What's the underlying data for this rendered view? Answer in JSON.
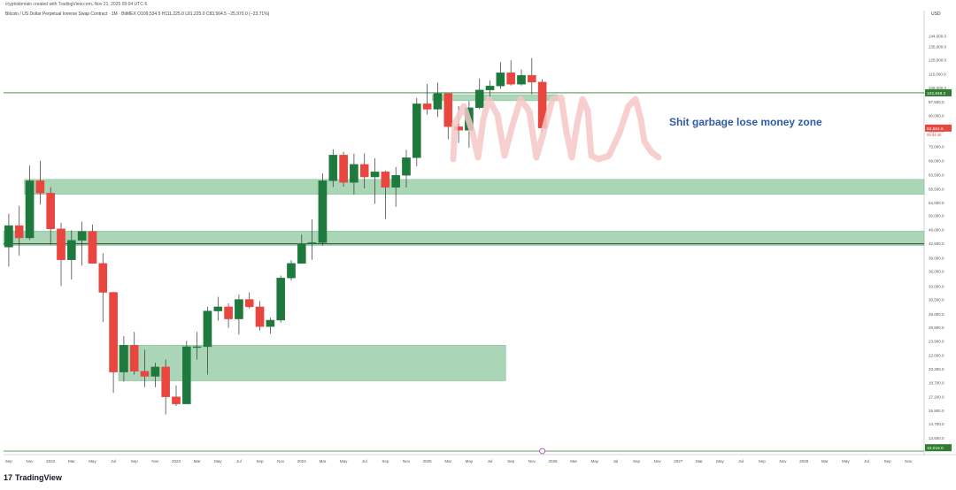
{
  "header": {
    "author_line": "cryptodomain created with TradingView.com, Nov 21, 2025 09:04 UTC-5",
    "symbol_line": "Bitcoin / US Dollar Perpetual Inverse Swap Contract · 1M · BitMEX  O109,534.5  H111,225.0  L81,225.0  C83,564.5  −25,970.0 (−23.71%)",
    "currency": "USD"
  },
  "branding": {
    "logo_text": "TradingView",
    "logo_mark": "17"
  },
  "annotation": {
    "text": "Shit garbage lose money zone"
  },
  "price_labels": {
    "level_label": "102,848.2",
    "current_label": "83,564.5",
    "current_time": "09:04:40",
    "bottom_label": "10,015.0"
  },
  "colors": {
    "bull": "#1e7a3c",
    "bear": "#e8463e",
    "zone": "#9ccfab",
    "zone_border": "#7ab98e",
    "scribble": "#f6c7c7",
    "annotation": "#2f5aa6",
    "level_line": "#2e7d32"
  },
  "chart_data": {
    "type": "candlestick",
    "interval": "1M",
    "scale": "log",
    "ylim": [
      12500,
      160000
    ],
    "y_ticks": [
      "144,000.0",
      "135,000.0",
      "125,000.0",
      "115,000.0",
      "106,000.0",
      "97,500.0",
      "90,000.0",
      "82,500.0",
      "75,000.0",
      "69,000.0",
      "63,500.0",
      "58,500.0",
      "54,000.0",
      "50,000.0",
      "46,000.0",
      "42,500.0",
      "39,000.0",
      "36,000.0",
      "33,000.0",
      "30,500.0",
      "28,000.0",
      "25,900.0",
      "23,900.0",
      "22,000.0",
      "20,300.0",
      "18,700.0",
      "17,200.0",
      "15,900.0",
      "14,700.0",
      "13,500.0"
    ],
    "x_ticks": [
      "Sep",
      "Nov",
      "2022",
      "Mar",
      "May",
      "Jul",
      "Sep",
      "Nov",
      "2023",
      "Mar",
      "May",
      "Jul",
      "Sep",
      "Nov",
      "2024",
      "Mar",
      "May",
      "Jul",
      "Sep",
      "Nov",
      "2025",
      "Mar",
      "May",
      "Jul",
      "Sep",
      "Nov",
      "2026",
      "Mar",
      "May",
      "Jul",
      "Sep",
      "Nov",
      "2027",
      "Mar",
      "May",
      "Jul",
      "Sep",
      "Nov",
      "2028",
      "Mar",
      "May",
      "Jul",
      "Sep",
      "Nov"
    ],
    "candles": [
      {
        "t": "2021-08",
        "o": 41500,
        "h": 50500,
        "l": 37000,
        "c": 47100
      },
      {
        "t": "2021-09",
        "o": 47100,
        "h": 52900,
        "l": 39500,
        "c": 43800
      },
      {
        "t": "2021-10",
        "o": 43800,
        "h": 67000,
        "l": 43300,
        "c": 61300
      },
      {
        "t": "2021-11",
        "o": 61300,
        "h": 69000,
        "l": 53300,
        "c": 57000
      },
      {
        "t": "2021-12",
        "o": 57000,
        "h": 59000,
        "l": 42100,
        "c": 46200
      },
      {
        "t": "2022-01",
        "o": 46200,
        "h": 47900,
        "l": 33000,
        "c": 38500
      },
      {
        "t": "2022-02",
        "o": 38500,
        "h": 45800,
        "l": 34300,
        "c": 43200
      },
      {
        "t": "2022-03",
        "o": 43200,
        "h": 48200,
        "l": 37200,
        "c": 45500
      },
      {
        "t": "2022-04",
        "o": 45500,
        "h": 47400,
        "l": 37700,
        "c": 37700
      },
      {
        "t": "2022-05",
        "o": 37700,
        "h": 40000,
        "l": 26700,
        "c": 31800
      },
      {
        "t": "2022-06",
        "o": 31800,
        "h": 31900,
        "l": 17600,
        "c": 19900
      },
      {
        "t": "2022-07",
        "o": 19900,
        "h": 24600,
        "l": 18800,
        "c": 23300
      },
      {
        "t": "2022-08",
        "o": 23300,
        "h": 25200,
        "l": 19600,
        "c": 20000
      },
      {
        "t": "2022-09",
        "o": 20000,
        "h": 22700,
        "l": 18200,
        "c": 19400
      },
      {
        "t": "2022-10",
        "o": 19400,
        "h": 21000,
        "l": 18200,
        "c": 20500
      },
      {
        "t": "2022-11",
        "o": 20500,
        "h": 21400,
        "l": 15500,
        "c": 17200
      },
      {
        "t": "2022-12",
        "o": 17200,
        "h": 18400,
        "l": 16300,
        "c": 16500
      },
      {
        "t": "2023-01",
        "o": 16500,
        "h": 23900,
        "l": 16500,
        "c": 23100
      },
      {
        "t": "2023-02",
        "o": 23100,
        "h": 25200,
        "l": 21400,
        "c": 23100
      },
      {
        "t": "2023-03",
        "o": 23100,
        "h": 29200,
        "l": 19600,
        "c": 28500
      },
      {
        "t": "2023-04",
        "o": 28500,
        "h": 31000,
        "l": 26900,
        "c": 29200
      },
      {
        "t": "2023-05",
        "o": 29200,
        "h": 29800,
        "l": 25800,
        "c": 27200
      },
      {
        "t": "2023-06",
        "o": 27200,
        "h": 31400,
        "l": 24800,
        "c": 30500
      },
      {
        "t": "2023-07",
        "o": 30500,
        "h": 31800,
        "l": 28900,
        "c": 29200
      },
      {
        "t": "2023-08",
        "o": 29200,
        "h": 30200,
        "l": 25400,
        "c": 26000
      },
      {
        "t": "2023-09",
        "o": 26000,
        "h": 27400,
        "l": 24900,
        "c": 27000
      },
      {
        "t": "2023-10",
        "o": 27000,
        "h": 35100,
        "l": 26600,
        "c": 34600
      },
      {
        "t": "2023-11",
        "o": 34600,
        "h": 38400,
        "l": 34100,
        "c": 37700
      },
      {
        "t": "2023-12",
        "o": 37700,
        "h": 44700,
        "l": 37600,
        "c": 42300
      },
      {
        "t": "2024-01",
        "o": 42300,
        "h": 48900,
        "l": 38500,
        "c": 42600
      },
      {
        "t": "2024-02",
        "o": 42600,
        "h": 64000,
        "l": 41900,
        "c": 61300
      },
      {
        "t": "2024-03",
        "o": 61300,
        "h": 73800,
        "l": 59100,
        "c": 71300
      },
      {
        "t": "2024-04",
        "o": 71300,
        "h": 72700,
        "l": 59200,
        "c": 60700
      },
      {
        "t": "2024-05",
        "o": 60700,
        "h": 71900,
        "l": 56600,
        "c": 67500
      },
      {
        "t": "2024-06",
        "o": 67500,
        "h": 72000,
        "l": 58600,
        "c": 62700
      },
      {
        "t": "2024-07",
        "o": 62700,
        "h": 70000,
        "l": 53500,
        "c": 64600
      },
      {
        "t": "2024-08",
        "o": 64600,
        "h": 65100,
        "l": 49000,
        "c": 59000
      },
      {
        "t": "2024-09",
        "o": 59000,
        "h": 66500,
        "l": 52600,
        "c": 63300
      },
      {
        "t": "2024-10",
        "o": 63300,
        "h": 73600,
        "l": 58900,
        "c": 70200
      },
      {
        "t": "2024-11",
        "o": 70200,
        "h": 99800,
        "l": 66800,
        "c": 96400
      },
      {
        "t": "2024-12",
        "o": 96400,
        "h": 108300,
        "l": 90500,
        "c": 93400
      },
      {
        "t": "2025-01",
        "o": 93400,
        "h": 109300,
        "l": 89200,
        "c": 102400
      },
      {
        "t": "2025-02",
        "o": 102400,
        "h": 102500,
        "l": 78200,
        "c": 84300
      },
      {
        "t": "2025-03",
        "o": 84300,
        "h": 95100,
        "l": 76600,
        "c": 82500
      },
      {
        "t": "2025-04",
        "o": 82500,
        "h": 97900,
        "l": 74400,
        "c": 94200
      },
      {
        "t": "2025-05",
        "o": 94200,
        "h": 111900,
        "l": 93400,
        "c": 104600
      },
      {
        "t": "2025-06",
        "o": 104600,
        "h": 110500,
        "l": 98200,
        "c": 107100
      },
      {
        "t": "2025-07",
        "o": 107100,
        "h": 123200,
        "l": 105300,
        "c": 115700
      },
      {
        "t": "2025-08",
        "o": 115700,
        "h": 124500,
        "l": 107300,
        "c": 108200
      },
      {
        "t": "2025-09",
        "o": 108200,
        "h": 117900,
        "l": 107300,
        "c": 114000
      },
      {
        "t": "2025-10",
        "o": 114000,
        "h": 126200,
        "l": 102000,
        "c": 109500
      },
      {
        "t": "2025-11",
        "o": 109534.5,
        "h": 111225,
        "l": 81225,
        "c": 83564.5
      }
    ],
    "zones": [
      {
        "from": "2021-10",
        "to": "2028-11",
        "low": 56600,
        "high": 61800
      },
      {
        "from": "2021-08",
        "to": "2028-11",
        "low": 41900,
        "high": 45600
      },
      {
        "from": "2022-07",
        "to": "2025-07",
        "low": 18900,
        "high": 23300
      },
      {
        "from": "2025-01",
        "to": "2025-12",
        "low": 98200,
        "high": 101700
      }
    ],
    "levels": [
      102848.2,
      42300,
      10015
    ]
  }
}
